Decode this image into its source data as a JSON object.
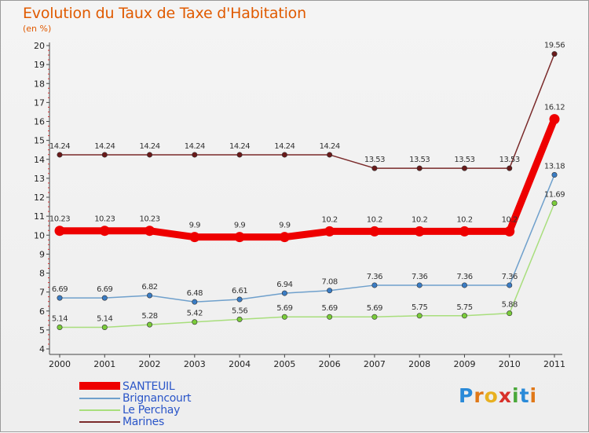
{
  "title": "Evolution du Taux de Taxe d'Habitation",
  "subtitle": "(en %)",
  "brand": "Proxiti",
  "chart_data": {
    "type": "line",
    "title": "Evolution du Taux de Taxe d'Habitation",
    "ylabel": "(en %)",
    "xlabel": "",
    "x": [
      2000,
      2001,
      2002,
      2003,
      2004,
      2005,
      2006,
      2007,
      2008,
      2009,
      2010,
      2011
    ],
    "x_tick_labels": [
      "2000",
      "2001",
      "2002",
      "2003",
      "2004",
      "2005",
      "2006",
      "2007",
      "2008",
      "2009",
      "2010",
      "2011"
    ],
    "ylim": [
      4,
      20
    ],
    "y_ticks": [
      4,
      5,
      6,
      7,
      8,
      9,
      10,
      11,
      12,
      13,
      14,
      15,
      16,
      17,
      18,
      19,
      20
    ],
    "grid": false,
    "legend_position": "bottom-left",
    "series": [
      {
        "name": "SANTEUIL",
        "color": "#ee0000",
        "values": [
          10.23,
          10.23,
          10.23,
          9.9,
          9.9,
          9.9,
          10.2,
          10.2,
          10.2,
          10.2,
          10.2,
          16.12
        ],
        "labels": [
          "10.23",
          "10.23",
          "10.23",
          "9.9",
          "9.9",
          "9.9",
          "10.2",
          "10.2",
          "10.2",
          "10.2",
          "10.2",
          "16.12"
        ]
      },
      {
        "name": "Brignancourt",
        "color": "#6fa0cc",
        "values": [
          6.69,
          6.69,
          6.82,
          6.48,
          6.61,
          6.94,
          7.08,
          7.36,
          7.36,
          7.36,
          7.36,
          13.18
        ],
        "labels": [
          "6.69",
          "6.69",
          "6.82",
          "6.48",
          "6.61",
          "6.94",
          "7.08",
          "7.36",
          "7.36",
          "7.36",
          "7.36",
          "13.18"
        ]
      },
      {
        "name": "Le Perchay",
        "color": "#a8de7c",
        "values": [
          5.14,
          5.14,
          5.28,
          5.42,
          5.56,
          5.69,
          5.69,
          5.69,
          5.75,
          5.75,
          5.88,
          11.69
        ],
        "labels": [
          "5.14",
          "5.14",
          "5.28",
          "5.42",
          "5.56",
          "5.69",
          "5.69",
          "5.69",
          "5.75",
          "5.75",
          "5.88",
          "11.69"
        ]
      },
      {
        "name": "Marines",
        "color": "#7a2a2a",
        "values": [
          14.24,
          14.24,
          14.24,
          14.24,
          14.24,
          14.24,
          14.24,
          13.53,
          13.53,
          13.53,
          13.53,
          19.56
        ],
        "labels": [
          "14.24",
          "14.24",
          "14.24",
          "14.24",
          "14.24",
          "14.24",
          "14.24",
          "13.53",
          "13.53",
          "13.53",
          "13.53",
          "19.56"
        ]
      }
    ]
  }
}
